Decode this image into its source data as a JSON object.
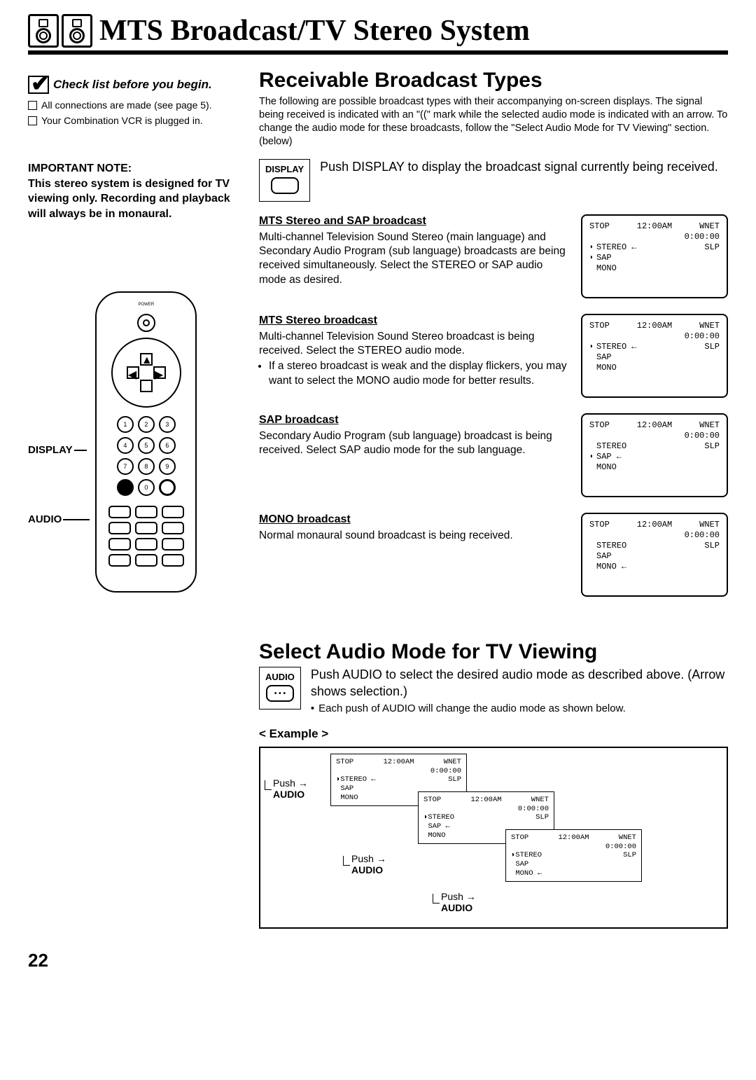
{
  "header": {
    "title": "MTS Broadcast/TV Stereo System"
  },
  "checklist": {
    "title": "Check list before you begin.",
    "items": [
      "All connections are made (see page 5).",
      "Your Combination VCR is plugged in."
    ]
  },
  "important_note": {
    "heading": "IMPORTANT NOTE:",
    "body": "This stereo system is designed for TV viewing only. Recording and playback will always be in monaural."
  },
  "remote_labels": {
    "display": "DISPLAY",
    "audio": "AUDIO"
  },
  "receivable": {
    "title": "Receivable Broadcast Types",
    "intro": "The following are possible broadcast types with their accompanying on-screen displays. The signal being received is indicated with an \"((\" mark while the selected audio mode is indicated with an arrow. To change the audio mode for these broadcasts, follow the \"Select Audio Mode for TV Viewing\" section. (below)",
    "display_btn": "DISPLAY",
    "display_text": "Push DISPLAY to display the broadcast signal currently being received.",
    "osd_common": {
      "stop": "STOP",
      "time": "12:00AM",
      "ch": "WNET",
      "counter": "0:00:00",
      "speed": "SLP",
      "stereo": "STEREO",
      "sap": "SAP",
      "mono": "MONO"
    },
    "types": [
      {
        "title": "MTS Stereo and SAP broadcast",
        "body": "Multi-channel Television Sound Stereo (main language) and Secondary Audio Program (sub language) broadcasts are being received simultaneously. Select the STEREO or SAP audio mode as desired.",
        "marks": {
          "stereo": true,
          "sap": true,
          "mono": false
        },
        "arrow": "stereo"
      },
      {
        "title": "MTS Stereo broadcast",
        "body": "Multi-channel Television Sound Stereo broadcast is being received. Select the STEREO audio mode.",
        "bullet": "If a stereo broadcast is weak and the display flickers, you may want to select the MONO audio mode for better results.",
        "marks": {
          "stereo": true,
          "sap": false,
          "mono": false
        },
        "arrow": "stereo"
      },
      {
        "title": "SAP broadcast",
        "body": "Secondary Audio Program (sub language) broadcast is being received. Select SAP audio mode for the sub language.",
        "marks": {
          "stereo": false,
          "sap": true,
          "mono": false
        },
        "arrow": "sap"
      },
      {
        "title": "MONO broadcast",
        "body": "Normal monaural sound broadcast is being received.",
        "marks": {
          "stereo": false,
          "sap": false,
          "mono": false
        },
        "arrow": "mono"
      }
    ]
  },
  "select_audio": {
    "title": "Select Audio Mode for TV Viewing",
    "audio_btn": "AUDIO",
    "text": "Push AUDIO to select the desired audio mode as described above. (Arrow shows selection.)",
    "bullet": "Each push of AUDIO will change the audio mode as shown below.",
    "example_label": "< Example >",
    "push_label": "Push",
    "audio_label": "AUDIO",
    "steps": [
      {
        "arrow": "stereo",
        "stereo_mark": true
      },
      {
        "arrow": "sap",
        "stereo_mark": true
      },
      {
        "arrow": "mono",
        "stereo_mark": true
      }
    ]
  },
  "page_number": "22"
}
